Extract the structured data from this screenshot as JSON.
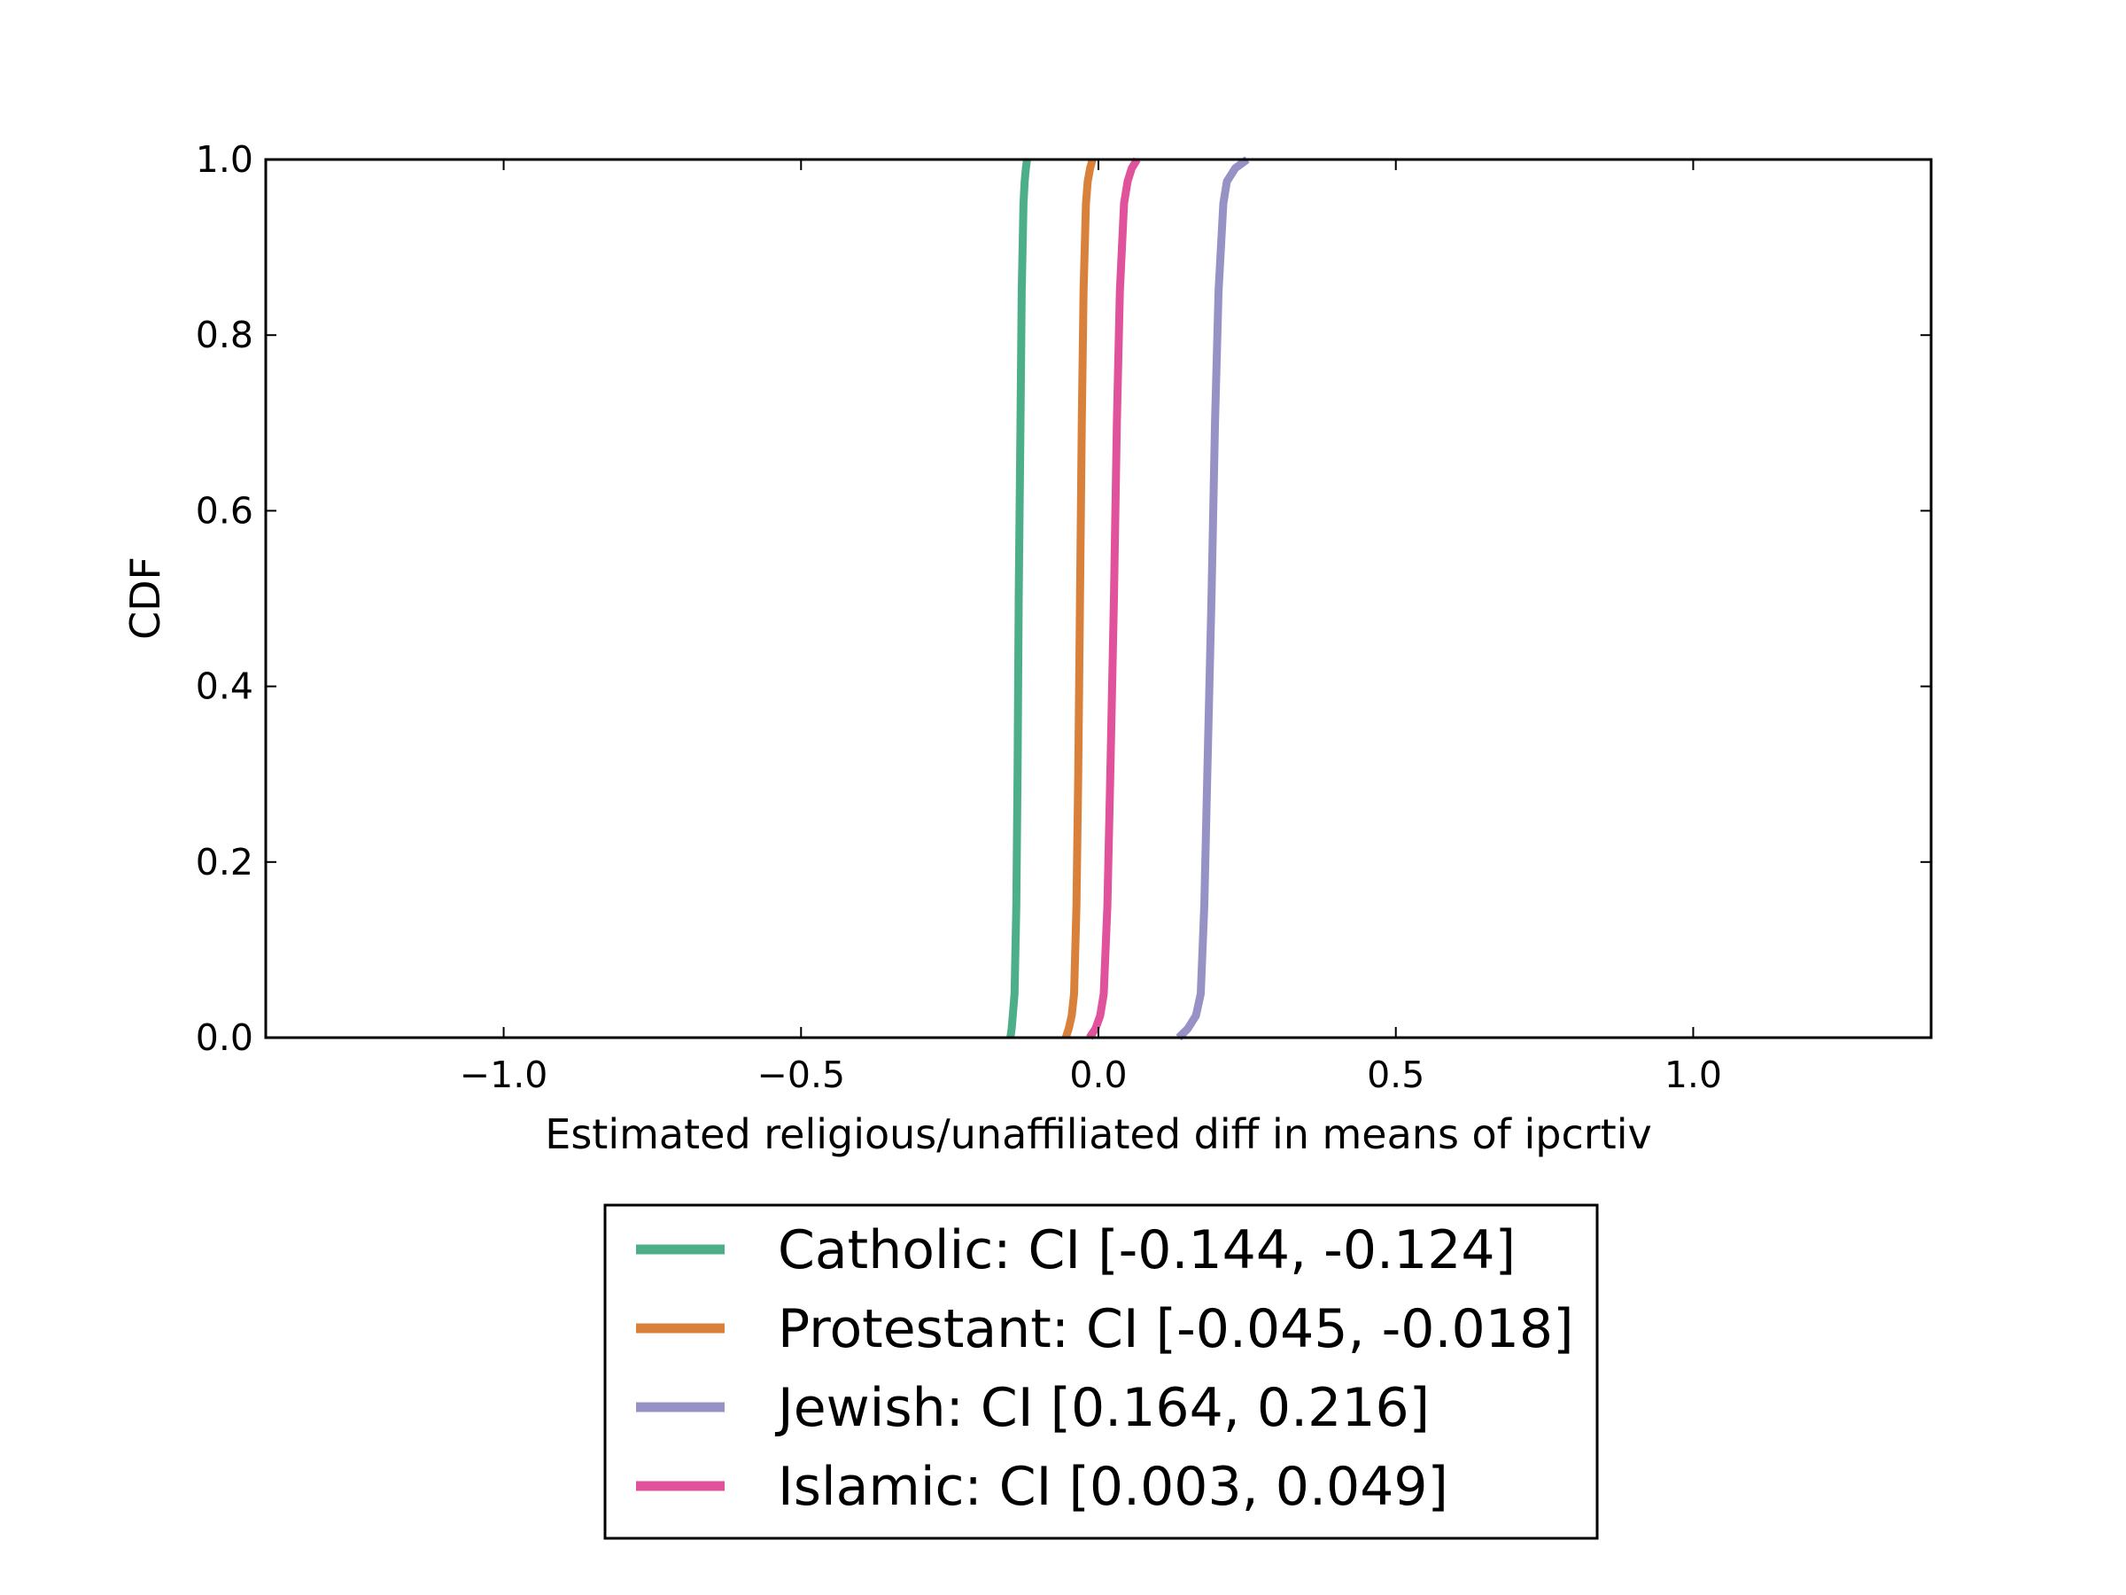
{
  "chart_data": {
    "type": "line",
    "title": "",
    "xlabel": "Estimated religious/unaffiliated diff in means of ipcrtiv",
    "ylabel": "CDF",
    "xlim": [
      -1.4,
      1.4
    ],
    "ylim": [
      0.0,
      1.0
    ],
    "xticks": [
      -1.0,
      -0.5,
      0.0,
      0.5,
      1.0
    ],
    "xtick_labels": [
      "−1.0",
      "−0.5",
      "0.0",
      "0.5",
      "1.0"
    ],
    "yticks": [
      0.0,
      0.2,
      0.4,
      0.6,
      0.8,
      1.0
    ],
    "ytick_labels": [
      "0.0",
      "0.2",
      "0.4",
      "0.6",
      "0.8",
      "1.0"
    ],
    "grid": false,
    "legend_position": "below",
    "series": [
      {
        "name": "Catholic",
        "legend_label": "Catholic: CI [-0.144, -0.124]",
        "color": "#4daf8a",
        "x": [
          -0.148,
          -0.146,
          -0.144,
          -0.141,
          -0.138,
          -0.136,
          -0.134,
          -0.131,
          -0.129,
          -0.126,
          -0.124,
          -0.122,
          -0.12
        ],
        "y": [
          0.0,
          0.01,
          0.025,
          0.05,
          0.15,
          0.3,
          0.5,
          0.7,
          0.85,
          0.95,
          0.975,
          0.99,
          1.0
        ]
      },
      {
        "name": "Protestant",
        "legend_label": "Protestant: CI [-0.045, -0.018]",
        "color": "#d9813b",
        "x": [
          -0.055,
          -0.05,
          -0.045,
          -0.041,
          -0.037,
          -0.034,
          -0.031,
          -0.028,
          -0.025,
          -0.021,
          -0.018,
          -0.014,
          -0.01
        ],
        "y": [
          0.0,
          0.01,
          0.025,
          0.05,
          0.15,
          0.3,
          0.5,
          0.7,
          0.85,
          0.95,
          0.975,
          0.99,
          1.0
        ]
      },
      {
        "name": "Jewish",
        "legend_label": "Jewish: CI [0.164, 0.216]",
        "color": "#9692c6",
        "x": [
          0.135,
          0.15,
          0.164,
          0.172,
          0.178,
          0.183,
          0.19,
          0.196,
          0.202,
          0.21,
          0.216,
          0.23,
          0.25
        ],
        "y": [
          0.0,
          0.01,
          0.025,
          0.05,
          0.15,
          0.3,
          0.5,
          0.7,
          0.85,
          0.95,
          0.975,
          0.99,
          1.0
        ]
      },
      {
        "name": "Islamic",
        "legend_label": "Islamic: CI [0.003, 0.049]",
        "color": "#e0529b",
        "x": [
          -0.015,
          -0.005,
          0.003,
          0.009,
          0.015,
          0.02,
          0.026,
          0.031,
          0.036,
          0.043,
          0.049,
          0.056,
          0.065
        ],
        "y": [
          0.0,
          0.01,
          0.025,
          0.05,
          0.15,
          0.3,
          0.5,
          0.7,
          0.85,
          0.95,
          0.975,
          0.99,
          1.0
        ]
      }
    ],
    "legend_order": [
      "Catholic",
      "Protestant",
      "Jewish",
      "Islamic"
    ]
  }
}
